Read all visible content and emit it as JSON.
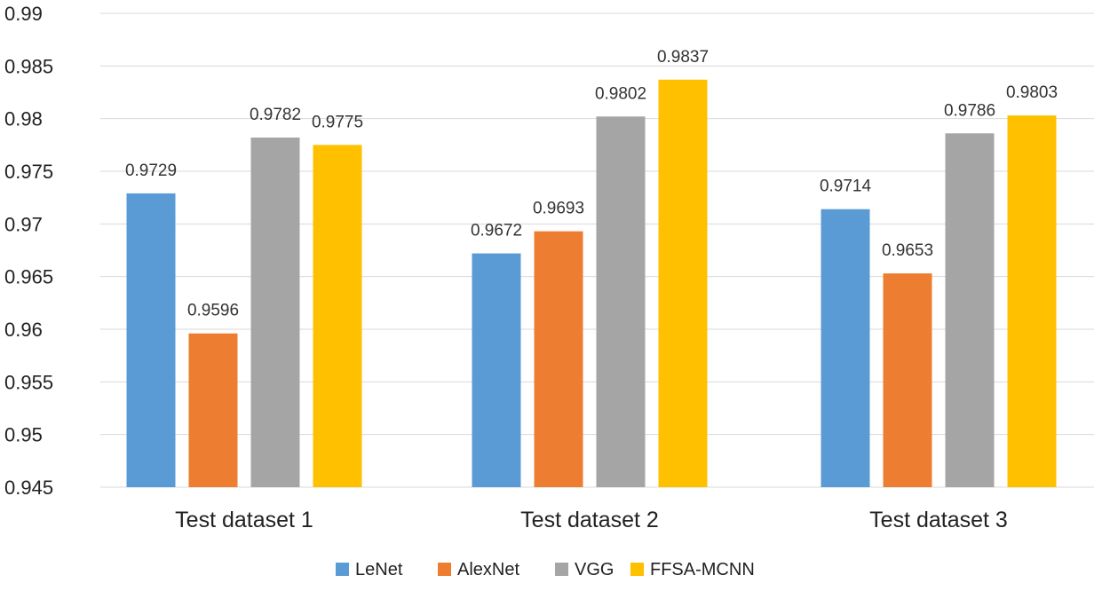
{
  "chart_data": {
    "type": "bar",
    "title": "",
    "xlabel": "",
    "ylabel": "",
    "categories": [
      "Test dataset 1",
      "Test dataset 2",
      "Test dataset 3"
    ],
    "series": [
      {
        "name": "LeNet",
        "color": "#5b9bd5",
        "values": [
          0.9729,
          0.9672,
          0.9714
        ]
      },
      {
        "name": "AlexNet",
        "color": "#ed7d31",
        "values": [
          0.9596,
          0.9693,
          0.9653
        ]
      },
      {
        "name": "VGG",
        "color": "#a5a5a5",
        "values": [
          0.9782,
          0.9802,
          0.9786
        ]
      },
      {
        "name": "FFSA-MCNN",
        "color": "#ffc000",
        "values": [
          0.9775,
          0.9837,
          0.9803
        ]
      }
    ],
    "ylim": [
      0.945,
      0.99
    ],
    "yticks": [
      "0.945",
      "0.95",
      "0.955",
      "0.96",
      "0.965",
      "0.97",
      "0.975",
      "0.98",
      "0.985",
      "0.99"
    ],
    "grid": true,
    "legend_position": "bottom-center",
    "data_labels": true
  }
}
